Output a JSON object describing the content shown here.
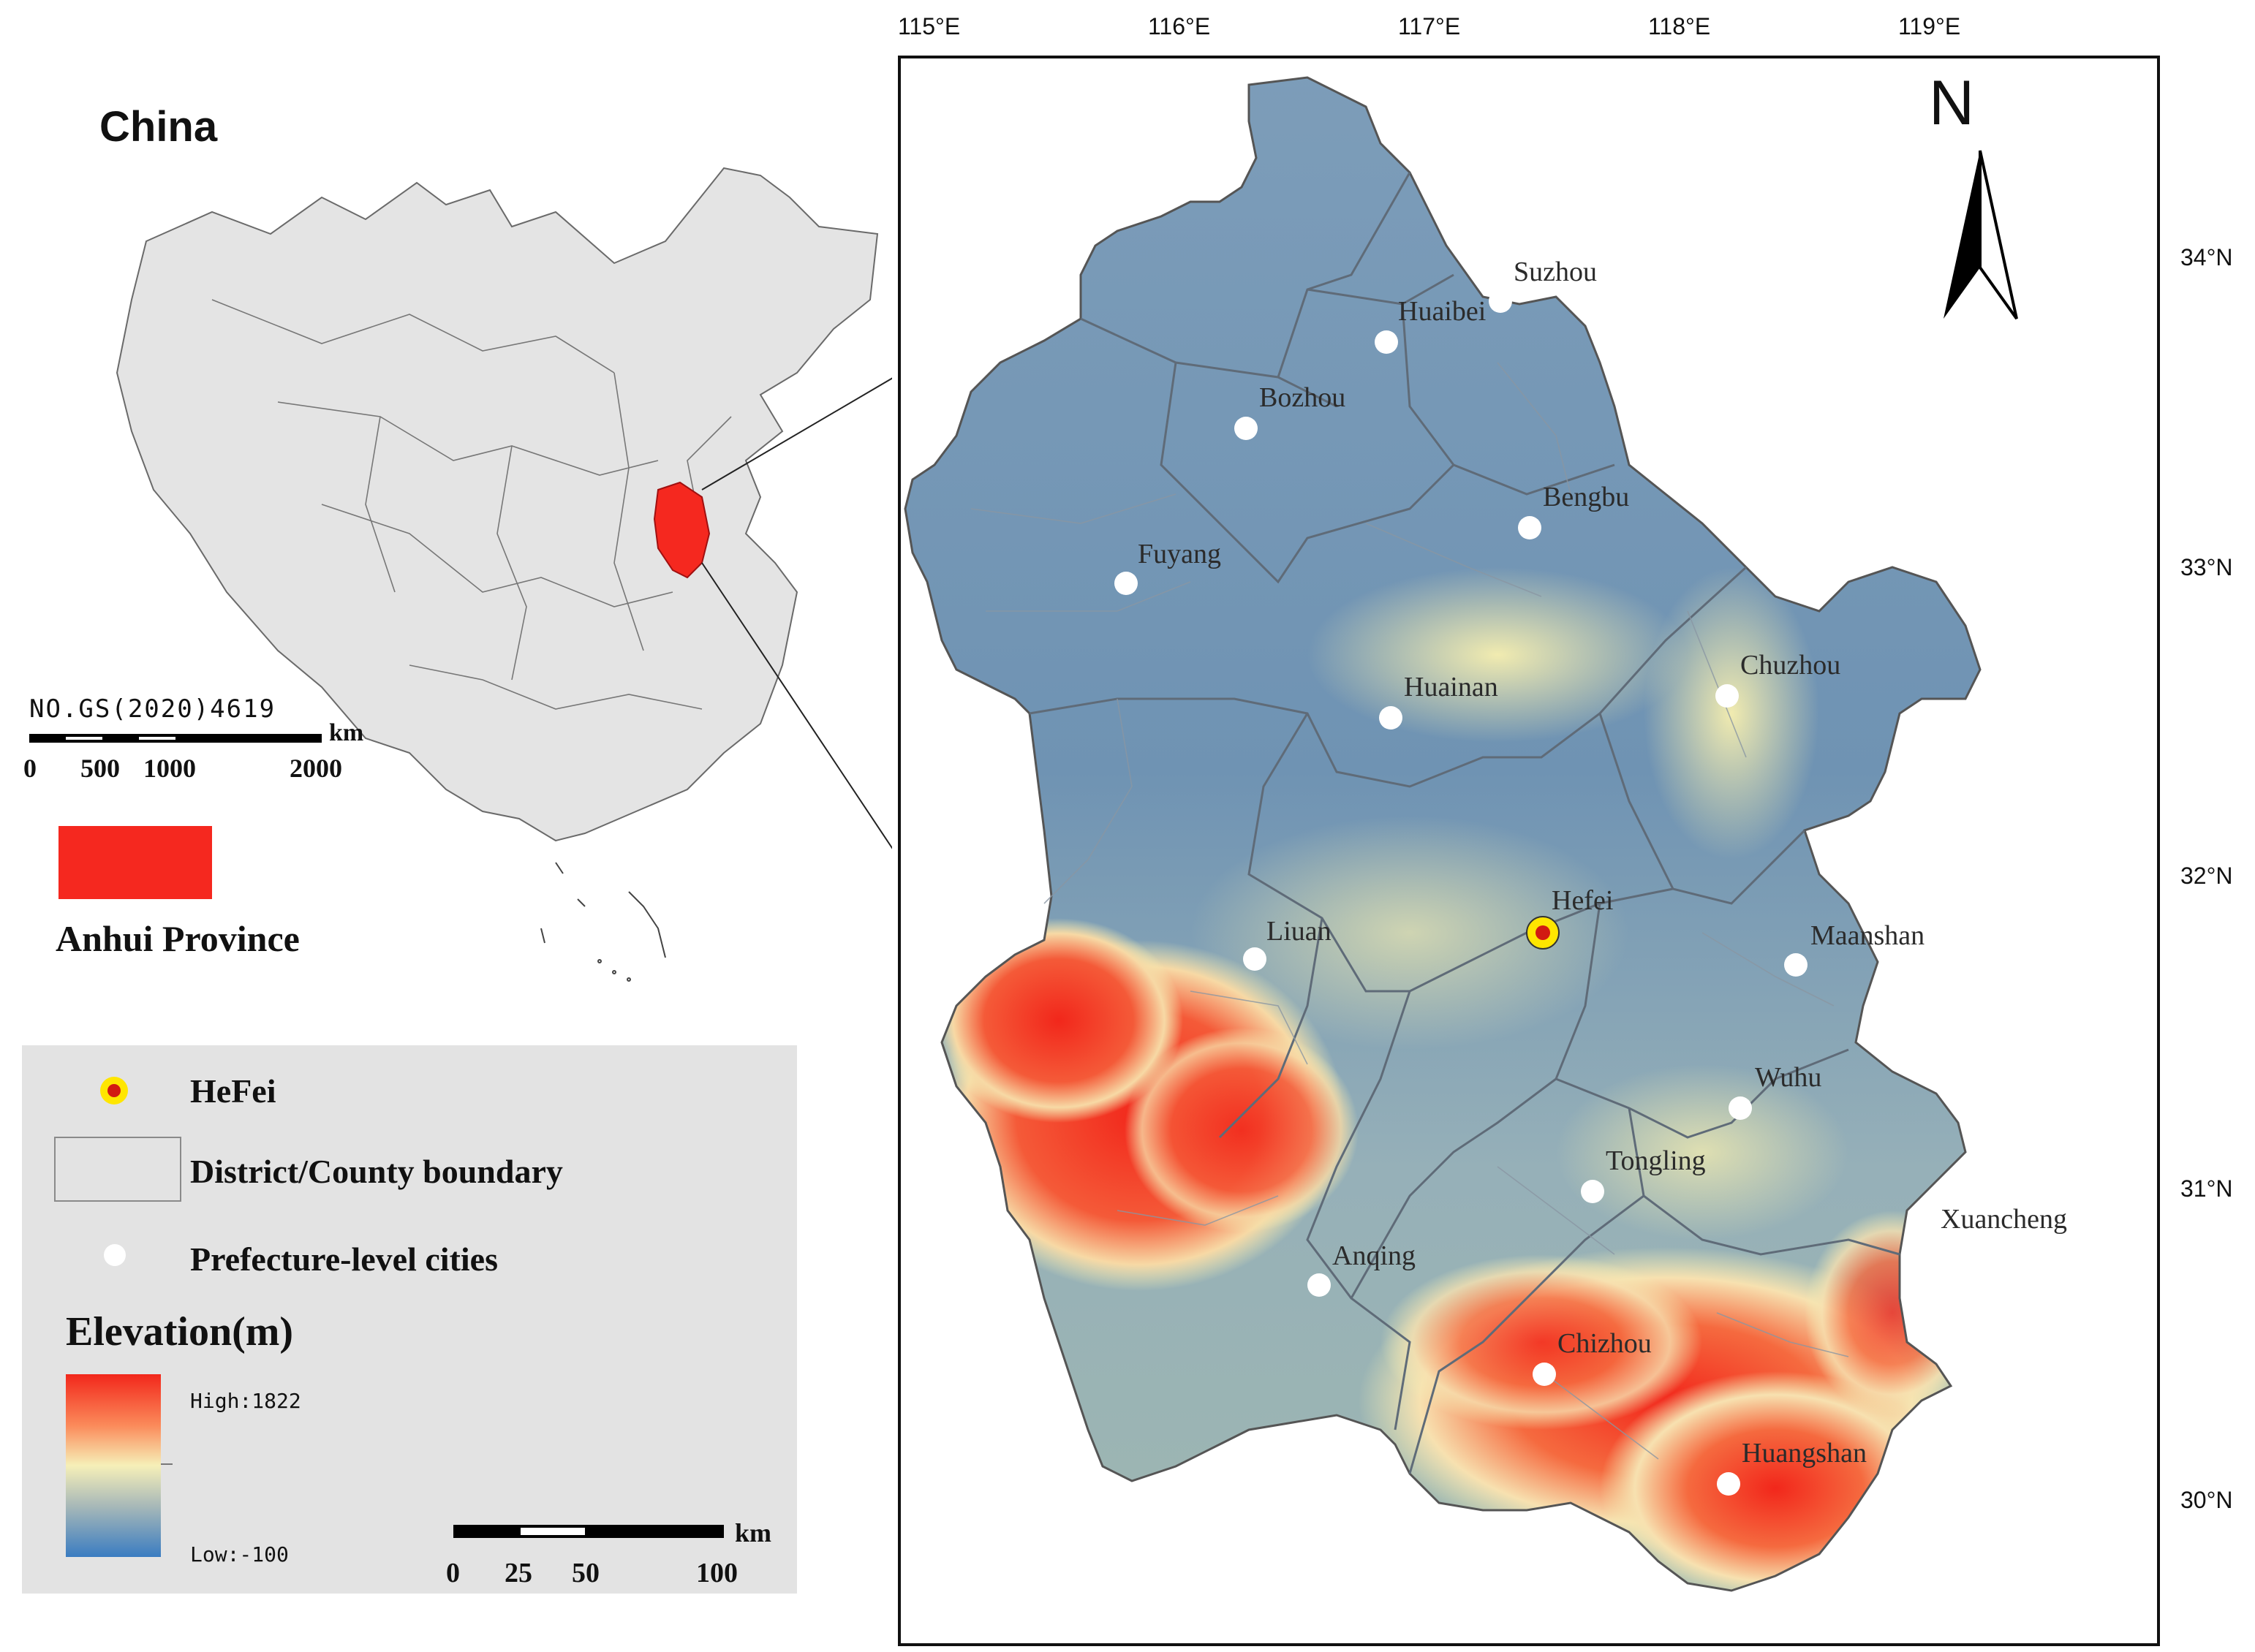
{
  "inset": {
    "title": "China",
    "map_no": "NO.GS(2020)4619",
    "scale": {
      "unit": "km",
      "ticks": [
        "0",
        "500",
        "1000",
        "2000"
      ]
    },
    "highlight_label": "Anhui Province",
    "highlight_color": "#f5281f"
  },
  "map": {
    "lon_ticks": [
      "115°E",
      "116°E",
      "117°E",
      "118°E",
      "119°E"
    ],
    "lat_ticks": [
      "34°N",
      "33°N",
      "32°N",
      "31°N",
      "30°N"
    ],
    "north_arrow": "N",
    "cities": [
      {
        "name": "Suzhou"
      },
      {
        "name": "Huaibei"
      },
      {
        "name": "Bozhou"
      },
      {
        "name": "Bengbu"
      },
      {
        "name": "Fuyang"
      },
      {
        "name": "Huainan"
      },
      {
        "name": "Chuzhou"
      },
      {
        "name": "Hefei",
        "capital": true
      },
      {
        "name": "Liuan"
      },
      {
        "name": "Maanshan"
      },
      {
        "name": "Wuhu"
      },
      {
        "name": "Tongling"
      },
      {
        "name": "Xuancheng"
      },
      {
        "name": "Anqing"
      },
      {
        "name": "Chizhou"
      },
      {
        "name": "Huangshan"
      }
    ],
    "scale": {
      "unit": "km",
      "ticks": [
        "0",
        "25",
        "50",
        "100"
      ]
    }
  },
  "legend": {
    "hefei": "HeFei",
    "boundary": "District/County boundary",
    "cities": "Prefecture-level cities",
    "elevation_title": "Elevation(m)",
    "high": "High:1822",
    "low": "Low:-100"
  },
  "colors": {
    "lowland": "#6d8fb0",
    "mid": "#f3efb4",
    "high": "#f2271b",
    "capital_ring": "#ffe600",
    "capital_dot": "#d21a12"
  }
}
